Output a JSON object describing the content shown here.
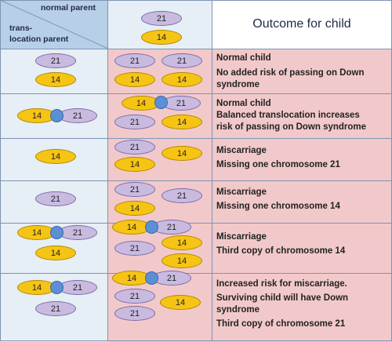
{
  "header": {
    "normal_parent": "normal parent",
    "trans_line1": "trans-",
    "trans_line2": "location parent",
    "outcome": "Outcome for child"
  },
  "labels": {
    "c21": "21",
    "c14": "14"
  },
  "rows": [
    {
      "title": "Normal child",
      "lines": [
        "No added risk of passing on Down",
        "syndrome"
      ]
    },
    {
      "title": "Normal child",
      "lines": [
        "Balanced translocation increases",
        "risk of passing on Down syndrome"
      ]
    },
    {
      "title": "Miscarriage",
      "lines": [
        "Missing one chromosome 21"
      ]
    },
    {
      "title": "Miscarriage",
      "lines": [
        "Missing one chromosome 14"
      ]
    },
    {
      "title": "Miscarriage",
      "lines": [
        "Third copy of chromosome 14"
      ]
    },
    {
      "title": "Increased risk for miscarriage.",
      "lines": [
        "Surviving child will have Down",
        "syndrome",
        "Third copy of chromosome 21"
      ]
    }
  ],
  "colors": {
    "chrom21": "#c9bbe0",
    "chrom14": "#f6c414",
    "centromere": "#5b8fd6",
    "outcome_bg": "#f2c9ca",
    "parent_bg": "#e6eef6"
  }
}
